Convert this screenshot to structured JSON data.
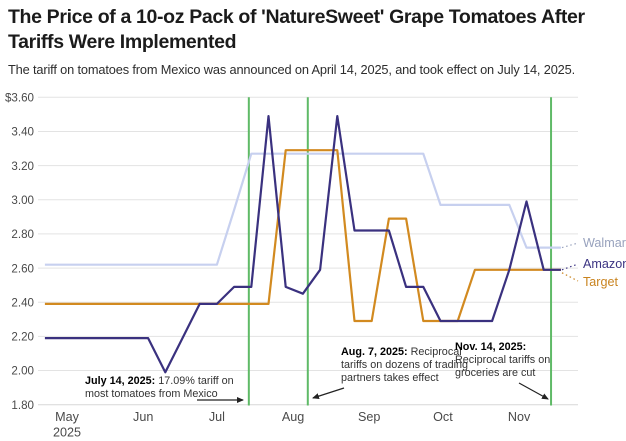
{
  "header": {
    "title": "The Price of a 10-oz Pack of 'NatureSweet' Grape Tomatoes After Tariffs Were Implemented",
    "subtitle": "The tariff on tomatoes from Mexico was announced on April 14, 2025, and took effect on July 14, 2025."
  },
  "chart_data": {
    "type": "line",
    "currency": "USD",
    "x": [
      "2025-04-22",
      "2025-04-29",
      "2025-05-06",
      "2025-05-13",
      "2025-05-20",
      "2025-05-27",
      "2025-06-03",
      "2025-06-10",
      "2025-06-17",
      "2025-06-24",
      "2025-07-01",
      "2025-07-08",
      "2025-07-15",
      "2025-07-22",
      "2025-07-29",
      "2025-08-05",
      "2025-08-12",
      "2025-08-19",
      "2025-08-26",
      "2025-09-02",
      "2025-09-09",
      "2025-09-16",
      "2025-09-23",
      "2025-09-30",
      "2025-10-07",
      "2025-10-14",
      "2025-10-21",
      "2025-10-28",
      "2025-11-04",
      "2025-11-11",
      "2025-11-18"
    ],
    "series": [
      {
        "name": "Walmart",
        "color": "#c7d0ef",
        "label_color": "#98a2bd",
        "values": [
          2.62,
          2.62,
          2.62,
          2.62,
          2.62,
          2.62,
          2.62,
          2.62,
          2.62,
          2.62,
          2.62,
          2.94,
          3.27,
          3.27,
          3.27,
          3.27,
          3.27,
          3.27,
          3.27,
          3.27,
          3.27,
          3.27,
          3.27,
          2.97,
          2.97,
          2.97,
          2.97,
          2.97,
          2.72,
          2.72,
          2.72
        ]
      },
      {
        "name": "Target",
        "color": "#d28a20",
        "label_color": "#c9831e",
        "values": [
          2.39,
          2.39,
          2.39,
          2.39,
          2.39,
          2.39,
          2.39,
          2.39,
          2.39,
          2.39,
          2.39,
          2.39,
          2.39,
          2.39,
          3.29,
          3.29,
          3.29,
          3.29,
          2.29,
          2.29,
          2.89,
          2.89,
          2.29,
          2.29,
          2.29,
          2.59,
          2.59,
          2.59,
          2.59,
          2.59,
          2.59
        ]
      },
      {
        "name": "Amazon",
        "color": "#3a317f",
        "label_color": "#3b3382",
        "values": [
          2.19,
          2.19,
          2.19,
          2.19,
          2.19,
          2.19,
          2.19,
          1.99,
          2.19,
          2.39,
          2.39,
          2.49,
          2.49,
          3.49,
          2.49,
          2.45,
          2.59,
          3.49,
          2.82,
          2.82,
          2.82,
          2.49,
          2.49,
          2.29,
          2.29,
          2.29,
          2.29,
          2.59,
          2.99,
          2.59,
          2.59
        ]
      }
    ],
    "ylim": [
      1.8,
      3.6
    ],
    "ytick_step": 0.2,
    "ytick_labels": [
      "$3.60",
      "3.40",
      "3.20",
      "3.00",
      "2.80",
      "2.60",
      "2.40",
      "2.20",
      "2.00",
      "1.80"
    ],
    "xticks": [
      {
        "date": "2025-05-01",
        "label": "May",
        "sub": "2025"
      },
      {
        "date": "2025-06-01",
        "label": "Jun"
      },
      {
        "date": "2025-07-01",
        "label": "Jul"
      },
      {
        "date": "2025-08-01",
        "label": "Aug"
      },
      {
        "date": "2025-09-01",
        "label": "Sep"
      },
      {
        "date": "2025-10-01",
        "label": "Oct"
      },
      {
        "date": "2025-11-01",
        "label": "Nov"
      }
    ],
    "grid": "horizontal",
    "legend_position": "right",
    "event_line_color": "#5fba67",
    "events": [
      {
        "date": "2025-07-14",
        "label_bold": "July 14, 2025:",
        "label_text": "17.09% tariff on most tomatoes from Mexico"
      },
      {
        "date": "2025-08-07",
        "label_bold": "Aug. 7, 2025:",
        "label_text": "Reciprocal tariffs on dozens of trading partners takes effect"
      },
      {
        "date": "2025-11-14",
        "label_bold": "Nov. 14, 2025:",
        "label_text": "Reciprocal tariffs on groceries are cut"
      }
    ]
  }
}
